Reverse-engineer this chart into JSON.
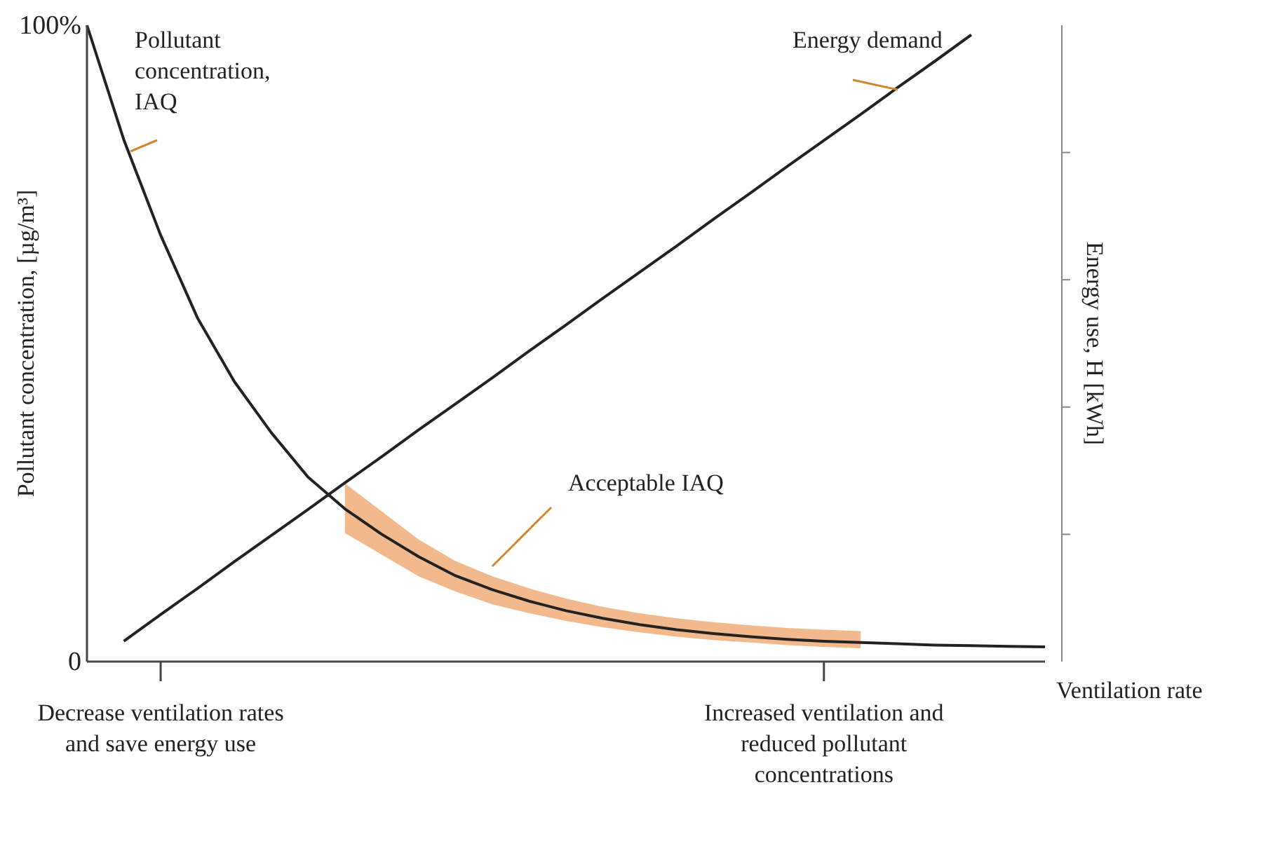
{
  "chart_data": {
    "type": "line",
    "xlabel": "Ventilation rate",
    "ylabel": "Pollutant concentration, [µg/m³]",
    "y2label": "Energy use, H [kWh]",
    "categories": [
      null,
      null,
      "Decrease ventilation rates and save energy use",
      null,
      null,
      null,
      null,
      null,
      null,
      null,
      null,
      null,
      null,
      null,
      null,
      null,
      null,
      null,
      null,
      null,
      "Increased ventilation and reduced pollutant concentrations",
      null,
      null,
      null,
      null,
      null,
      null
    ],
    "ylim": [
      0,
      100
    ],
    "yticks": [
      0,
      {
        "value": 100,
        "label": "100%"
      }
    ],
    "series": [
      {
        "name": "Pollutant concentration, IAQ",
        "color": "#222222",
        "values": [
          100,
          82,
          67,
          54,
          44,
          36,
          29,
          24,
          20,
          16.5,
          13.5,
          11.3,
          9.5,
          8,
          6.8,
          5.8,
          5,
          4.4,
          3.9,
          3.5,
          3.2,
          3,
          2.8,
          2.6,
          2.5,
          2.4,
          2.3
        ],
        "lower": [
          null,
          null,
          null,
          null,
          null,
          null,
          null,
          20.2,
          16.8,
          13.4,
          11,
          9,
          7.6,
          6.4,
          5.4,
          4.6,
          3.9,
          3.4,
          3,
          2.6,
          2.3,
          2.1,
          null,
          null,
          null,
          null,
          null
        ],
        "upper": [
          null,
          null,
          null,
          null,
          null,
          null,
          null,
          28,
          23.6,
          19.2,
          15.8,
          13.4,
          11.5,
          9.9,
          8.6,
          7.6,
          6.8,
          6.2,
          5.7,
          5.3,
          5,
          4.8,
          null,
          null,
          null,
          null,
          null
        ]
      },
      {
        "name": "Energy demand",
        "color": "#222222",
        "values": [
          null,
          3.2,
          7.4,
          11.5,
          15.7,
          19.8,
          23.9,
          28.1,
          32.2,
          36.4,
          40.5,
          44.6,
          48.8,
          52.9,
          57.1,
          61.2,
          65.3,
          69.5,
          73.6,
          77.8,
          81.9,
          86,
          90.2,
          94.3,
          98.5,
          null,
          null
        ]
      }
    ],
    "annotations": [
      "Acceptable IAQ"
    ],
    "grid": false,
    "legend": false,
    "marker": "none",
    "line_style": "solid"
  }
}
